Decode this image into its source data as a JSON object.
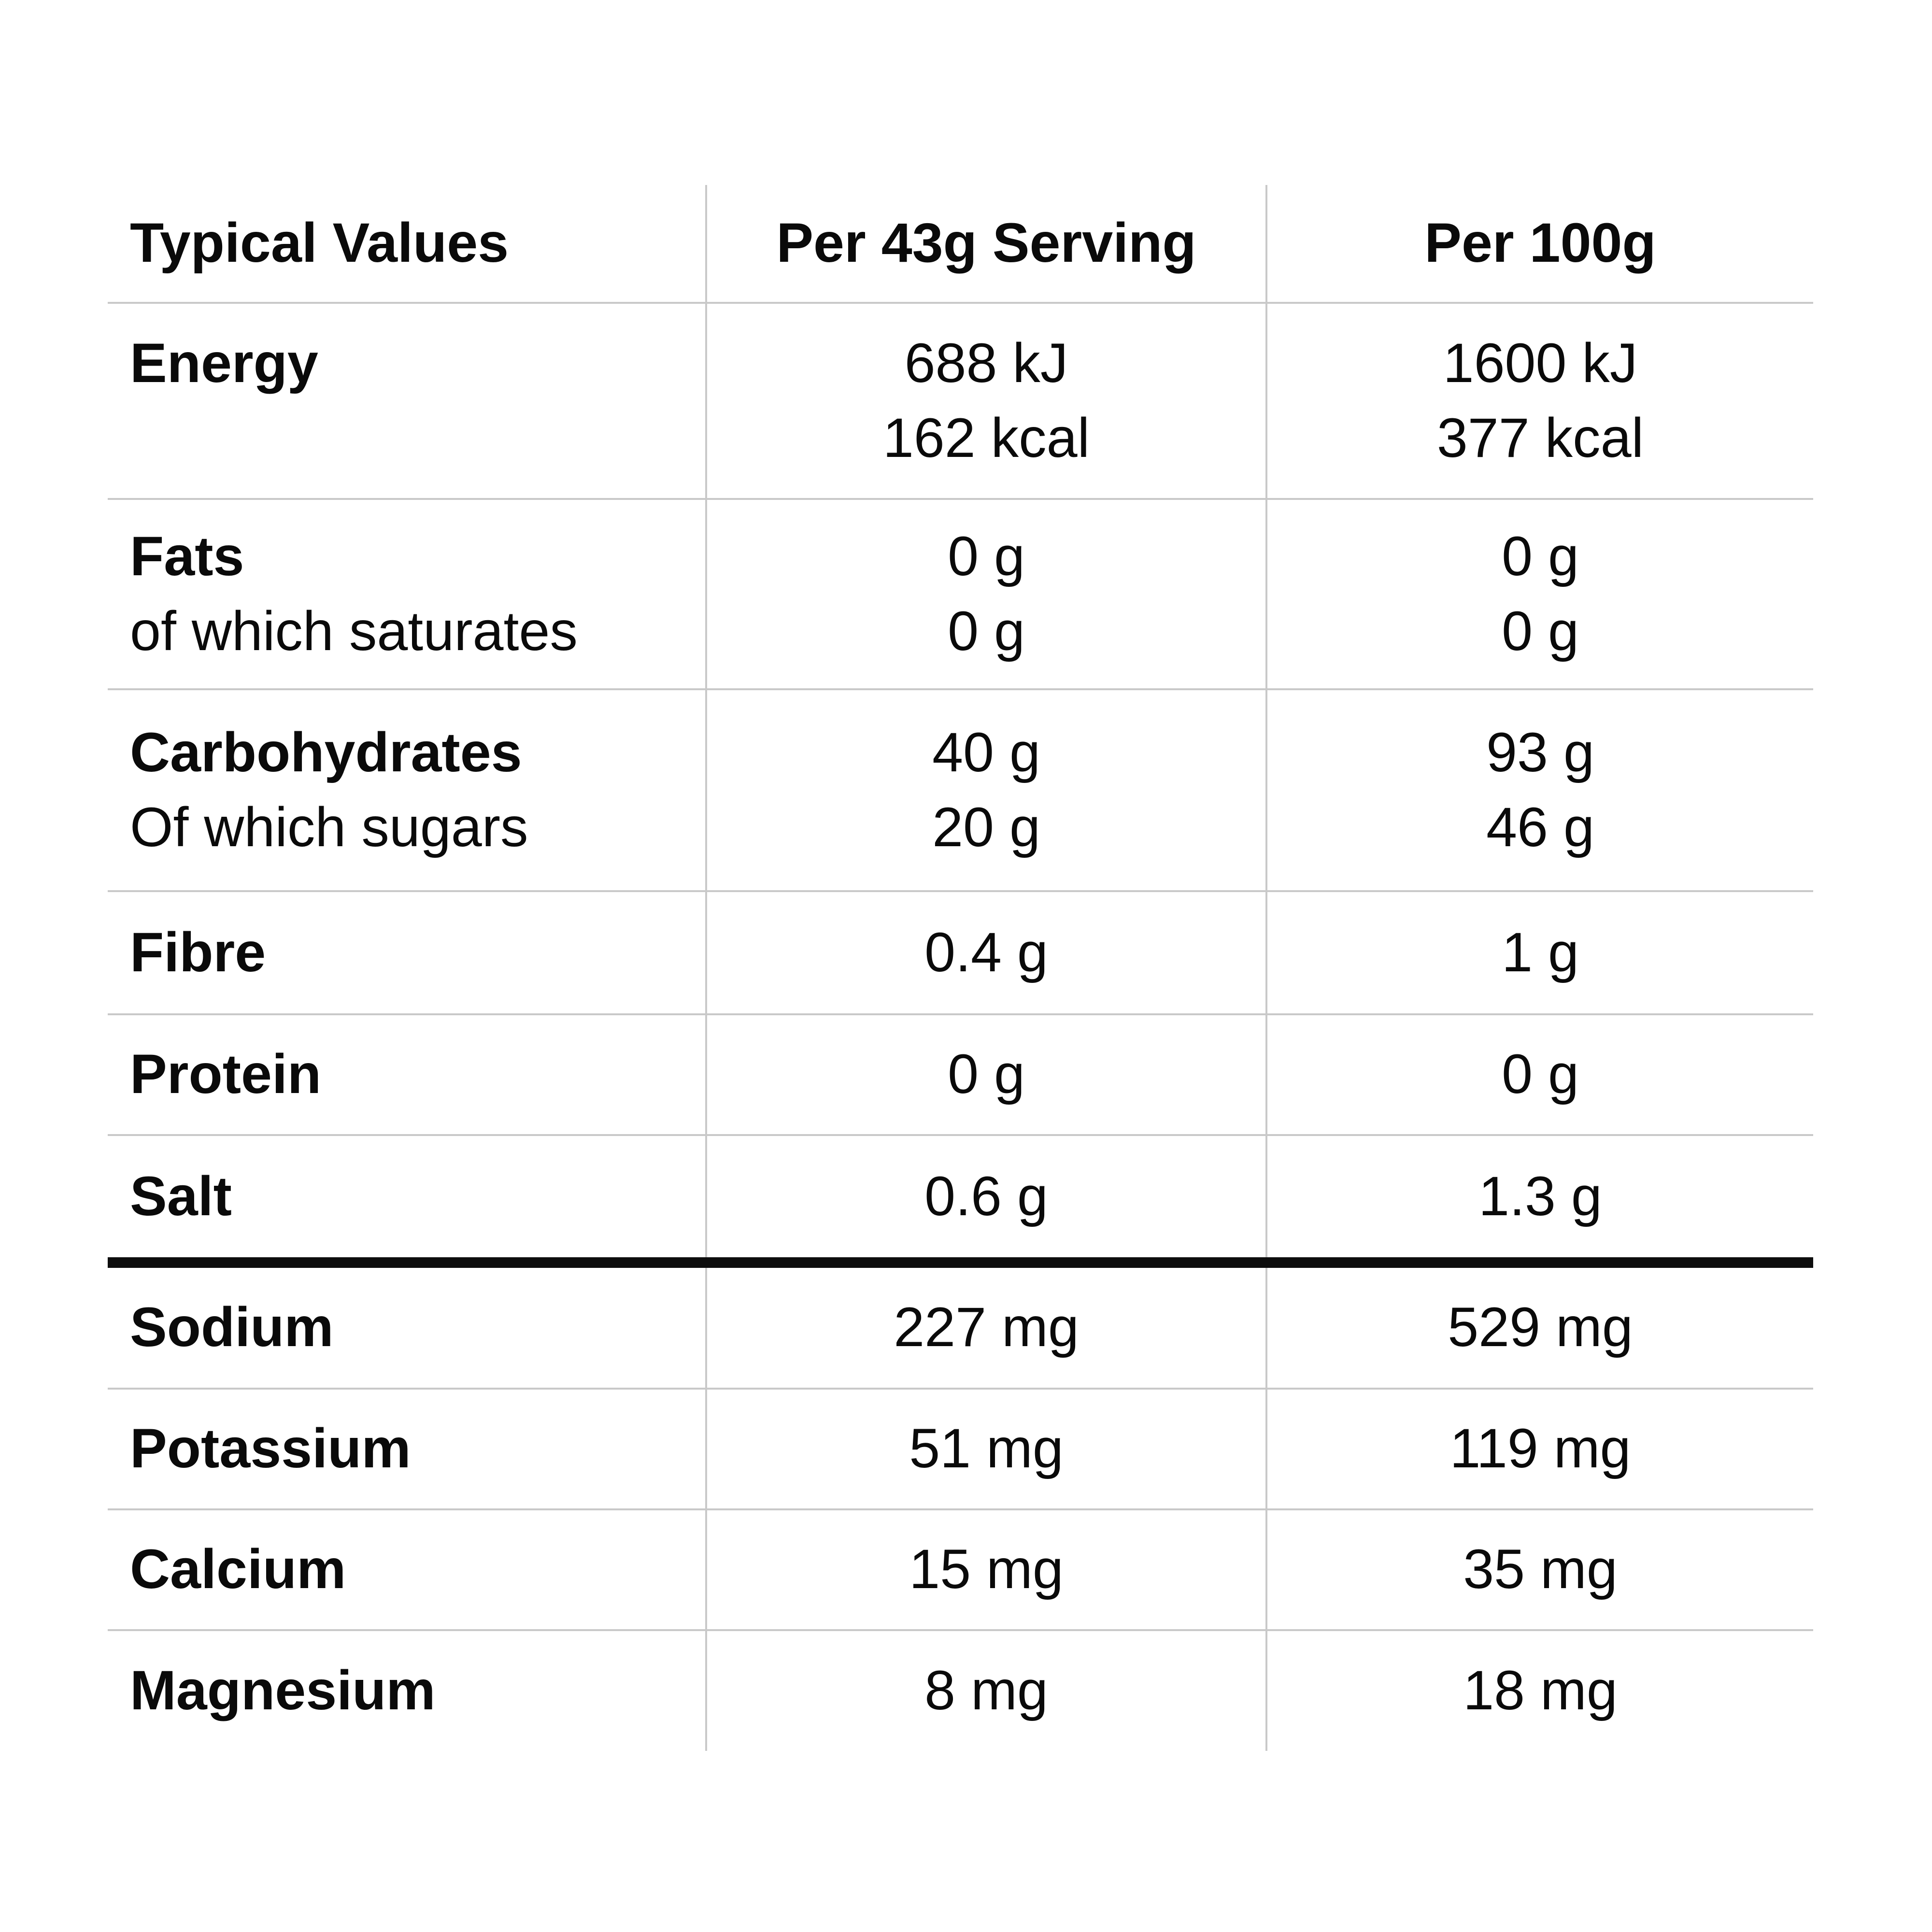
{
  "title": "Nutrition information table",
  "colors": {
    "background": "#ffffff",
    "text": "#0a0a0a",
    "grid_line": "#c9c9c9",
    "section_divider": "#0d0d0d"
  },
  "table": {
    "columns": [
      "Typical Values",
      "Per 43g Serving",
      "Per 100g"
    ],
    "rows": [
      {
        "label": "Energy",
        "per_serving": [
          "688 kJ",
          "162 kcal"
        ],
        "per_100g": [
          "1600 kJ",
          "377 kcal"
        ]
      },
      {
        "label": "Fats",
        "sublabel": "of which saturates",
        "per_serving": [
          "0 g",
          "0 g"
        ],
        "per_100g": [
          "0 g",
          "0 g"
        ]
      },
      {
        "label": "Carbohydrates",
        "sublabel": "Of which sugars",
        "per_serving": [
          "40 g",
          "20 g"
        ],
        "per_100g": [
          "93 g",
          "46 g"
        ]
      },
      {
        "label": "Fibre",
        "per_serving": [
          "0.4 g"
        ],
        "per_100g": [
          "1 g"
        ]
      },
      {
        "label": "Protein",
        "per_serving": [
          "0 g"
        ],
        "per_100g": [
          "0 g"
        ]
      },
      {
        "label": "Salt",
        "per_serving": [
          "0.6 g"
        ],
        "per_100g": [
          "1.3 g"
        ]
      },
      {
        "label": "Sodium",
        "per_serving": [
          "227 mg"
        ],
        "per_100g": [
          "529 mg"
        ]
      },
      {
        "label": "Potassium",
        "per_serving": [
          "51 mg"
        ],
        "per_100g": [
          "119 mg"
        ]
      },
      {
        "label": "Calcium",
        "per_serving": [
          "15 mg"
        ],
        "per_100g": [
          "35 mg"
        ]
      },
      {
        "label": "Magnesium",
        "per_serving": [
          "8 mg"
        ],
        "per_100g": [
          "18 mg"
        ]
      }
    ]
  }
}
